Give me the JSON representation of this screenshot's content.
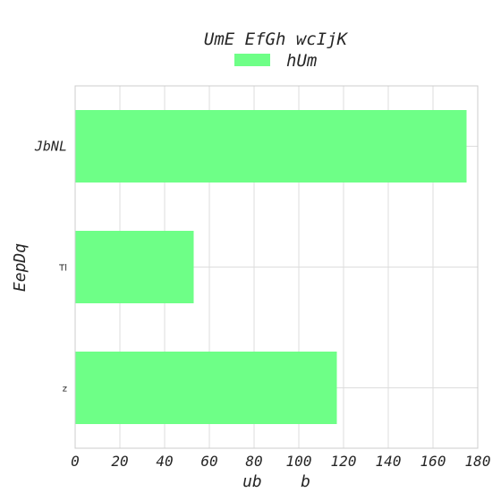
{
  "chart_data": {
    "type": "bar",
    "orientation": "horizontal",
    "title": "UmE EfGh wcIjK",
    "xlabel": "ub    b",
    "ylabel": "EepDq",
    "categories": [
      "JbNL",
      "Tl",
      "z"
    ],
    "series": [
      {
        "name": "hUm",
        "values": [
          175,
          53,
          117
        ],
        "color": "#6eff87"
      }
    ],
    "xlim": [
      0,
      180
    ],
    "xticks": [
      "0",
      "20",
      "40",
      "60",
      "80",
      "100",
      "120",
      "140",
      "160",
      "180"
    ],
    "grid": true,
    "legend_position": "top-center"
  }
}
